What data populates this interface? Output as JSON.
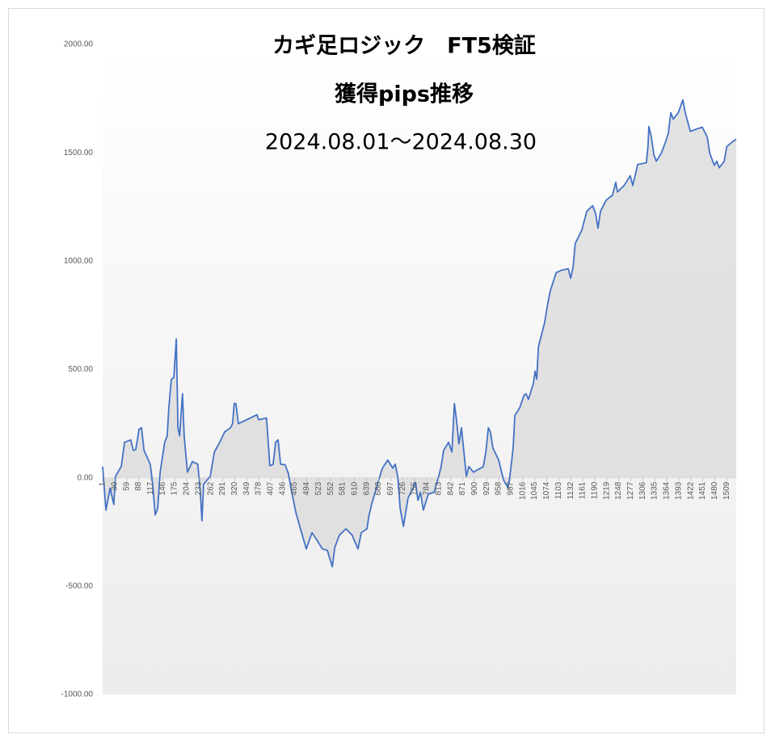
{
  "chart_data": {
    "type": "area",
    "title": "カギ足ロジック　FT5検証",
    "subtitle": "獲得pips推移",
    "annotations": [
      "2024.08.01～2024.08.30"
    ],
    "color": "#4472c4",
    "fill_color": "#d9d9d9",
    "x": [
      1,
      9,
      19,
      28,
      32,
      46,
      54,
      69,
      75,
      81,
      89,
      95,
      101,
      116,
      122,
      128,
      134,
      140,
      151,
      157,
      161,
      167,
      173,
      179,
      183,
      187,
      194,
      198,
      206,
      218,
      231,
      237,
      241,
      245,
      261,
      271,
      284,
      296,
      310,
      315,
      319,
      323,
      329,
      349,
      374,
      378,
      397,
      405,
      413,
      419,
      425,
      431,
      442,
      450,
      456,
      468,
      479,
      493,
      507,
      520,
      532,
      544,
      556,
      562,
      573,
      589,
      604,
      618,
      626,
      640,
      644,
      651,
      665,
      677,
      690,
      702,
      708,
      714,
      720,
      728,
      739,
      751,
      757,
      763,
      769,
      776,
      788,
      802,
      813,
      819,
      825,
      837,
      845,
      851,
      856,
      862,
      868,
      874,
      880,
      886,
      897,
      921,
      927,
      933,
      938,
      944,
      958,
      970,
      981,
      987,
      993,
      997,
      1009,
      1019,
      1024,
      1030,
      1042,
      1046,
      1050,
      1054,
      1069,
      1077,
      1083,
      1097,
      1110,
      1126,
      1132,
      1138,
      1143,
      1159,
      1171,
      1185,
      1192,
      1198,
      1204,
      1218,
      1233,
      1241,
      1245,
      1261,
      1276,
      1282,
      1294,
      1315,
      1319,
      1321,
      1327,
      1333,
      1339,
      1351,
      1362,
      1368,
      1374,
      1380,
      1392,
      1403,
      1409,
      1421,
      1437,
      1450,
      1462,
      1468,
      1479,
      1485,
      1491,
      1503,
      1509,
      1522,
      1532
    ],
    "values": [
      52,
      -149,
      -48,
      -123,
      7,
      52,
      164,
      175,
      127,
      130,
      224,
      231,
      127,
      63,
      -30,
      -171,
      -142,
      26,
      164,
      194,
      324,
      455,
      462,
      641,
      231,
      194,
      388,
      194,
      26,
      75,
      63,
      -67,
      -198,
      -30,
      7,
      119,
      164,
      212,
      231,
      250,
      343,
      343,
      250,
      268,
      291,
      268,
      276,
      56,
      63,
      164,
      175,
      63,
      60,
      19,
      -48,
      -160,
      -235,
      -328,
      -253,
      -291,
      -328,
      -335,
      -410,
      -321,
      -265,
      -235,
      -265,
      -328,
      -253,
      -235,
      -179,
      -123,
      -30,
      45,
      82,
      45,
      63,
      7,
      -142,
      -224,
      -93,
      -48,
      -22,
      -104,
      -67,
      -149,
      -75,
      -67,
      7,
      52,
      127,
      164,
      119,
      343,
      268,
      157,
      231,
      119,
      7,
      52,
      26,
      52,
      119,
      231,
      212,
      138,
      82,
      -11,
      -48,
      37,
      138,
      287,
      324,
      380,
      388,
      362,
      436,
      492,
      455,
      604,
      716,
      809,
      865,
      947,
      958,
      965,
      921,
      976,
      1081,
      1144,
      1230,
      1256,
      1222,
      1152,
      1230,
      1282,
      1304,
      1364,
      1319,
      1349,
      1394,
      1349,
      1446,
      1454,
      1536,
      1621,
      1573,
      1491,
      1461,
      1498,
      1554,
      1591,
      1685,
      1655,
      1685,
      1744,
      1685,
      1599,
      1610,
      1618,
      1573,
      1498,
      1442,
      1461,
      1431,
      1461,
      1528,
      1550,
      1562
    ],
    "xlim": [
      1,
      1532
    ],
    "xticks": [
      1,
      30,
      59,
      88,
      117,
      146,
      175,
      204,
      233,
      262,
      291,
      320,
      349,
      378,
      407,
      436,
      465,
      494,
      523,
      552,
      581,
      610,
      639,
      668,
      697,
      726,
      755,
      784,
      813,
      842,
      871,
      900,
      929,
      958,
      987,
      1016,
      1045,
      1074,
      1103,
      1132,
      1161,
      1190,
      1219,
      1248,
      1277,
      1306,
      1335,
      1364,
      1393,
      1422,
      1451,
      1480,
      1509
    ],
    "ylim": [
      -1000,
      2000
    ],
    "yticks": [
      {
        "value": 2000,
        "label": "2000.00"
      },
      {
        "value": 1500,
        "label": "1500.00"
      },
      {
        "value": 1000,
        "label": "1000.00"
      },
      {
        "value": 500,
        "label": "500.00"
      },
      {
        "value": 0,
        "label": "0.00"
      },
      {
        "value": -500,
        "label": "-500.00"
      },
      {
        "value": -1000,
        "label": "-1000.00"
      }
    ],
    "grid": false
  }
}
